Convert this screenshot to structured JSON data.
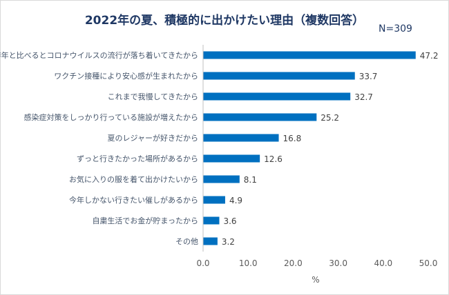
{
  "chart_data": {
    "type": "bar",
    "orientation": "horizontal",
    "title": "2022年の夏、積極的に出かけたい理由（複数回答）",
    "note": "N=309",
    "xlabel": "%",
    "ylabel": "",
    "xlim": [
      0,
      50
    ],
    "xticks": [
      "0.0",
      "10.0",
      "20.0",
      "30.0",
      "40.0",
      "50.0"
    ],
    "grid": false,
    "categories": [
      "昨年と比べるとコロナウイルスの流行が落ち着いてきたから",
      "ワクチン接種により安心感が生まれたから",
      "これまで我慢してきたから",
      "感染症対策をしっかり行っている施設が増えたから",
      "夏のレジャーが好きだから",
      "ずっと行きたかった場所があるから",
      "お気に入りの服を着て出かけたいから",
      "今年しかない行きたい催しがあるから",
      "自粛生活でお金が貯まったから",
      "その他"
    ],
    "values": [
      47.2,
      33.7,
      32.7,
      25.2,
      16.8,
      12.6,
      8.1,
      4.9,
      3.6,
      3.2
    ],
    "value_labels": [
      "47.2",
      "33.7",
      "32.7",
      "25.2",
      "16.8",
      "12.6",
      "8.1",
      "4.9",
      "3.6",
      "3.2"
    ],
    "bar_color": "#0070c0"
  }
}
